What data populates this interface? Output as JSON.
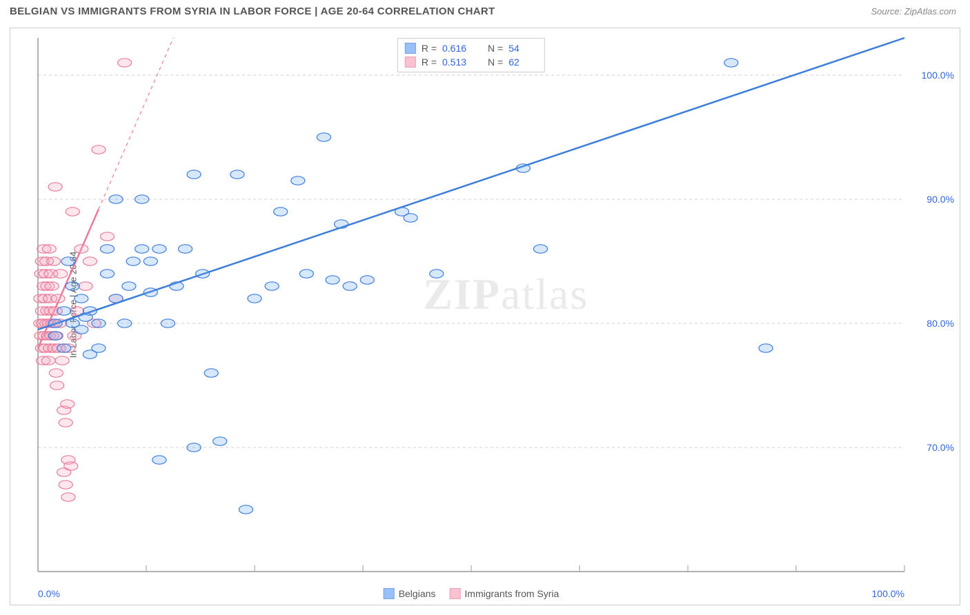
{
  "title": "BELGIAN VS IMMIGRANTS FROM SYRIA IN LABOR FORCE | AGE 20-64 CORRELATION CHART",
  "source": "Source: ZipAtlas.com",
  "y_axis_label": "In Labor Force | Age 20-64",
  "watermark_bold": "ZIP",
  "watermark_light": "atlas",
  "chart": {
    "type": "scatter",
    "xlim": [
      0,
      100
    ],
    "ylim": [
      60,
      103
    ],
    "background_color": "#ffffff",
    "grid_color": "#cccccc",
    "grid_dash": "4,4",
    "axis_color": "#999999",
    "y_ticks": [
      70,
      80,
      90,
      100
    ],
    "y_tick_labels": [
      "70.0%",
      "80.0%",
      "90.0%",
      "100.0%"
    ],
    "x_ticks": [
      0,
      12.5,
      25,
      37.5,
      50,
      62.5,
      75,
      87.5,
      100
    ],
    "x_tick_labels_shown": {
      "0": "0.0%",
      "100": "100.0%"
    },
    "marker_radius": 8,
    "marker_stroke_width": 1.2,
    "marker_fill_opacity": 0.28,
    "trend_line_width": 2.5,
    "series": [
      {
        "name": "Belgians",
        "color_fill": "#6fa8f5",
        "color_stroke": "#3b7ddd",
        "legend_label": "Belgians",
        "R": "0.616",
        "N": "54",
        "trend": {
          "x1": 0,
          "y1": 79.5,
          "x2": 100,
          "y2": 103,
          "dashed_from_x": 100
        },
        "points": [
          [
            2,
            80
          ],
          [
            2,
            79
          ],
          [
            3,
            81
          ],
          [
            3,
            78
          ],
          [
            3.5,
            85
          ],
          [
            4,
            80
          ],
          [
            4,
            83
          ],
          [
            5,
            79.5
          ],
          [
            5,
            82
          ],
          [
            5.5,
            80.5
          ],
          [
            6,
            77.5
          ],
          [
            6,
            81
          ],
          [
            7,
            80
          ],
          [
            7,
            78
          ],
          [
            8,
            86
          ],
          [
            8,
            84
          ],
          [
            9,
            82
          ],
          [
            9,
            90
          ],
          [
            10,
            80
          ],
          [
            10.5,
            83
          ],
          [
            11,
            85
          ],
          [
            12,
            90
          ],
          [
            12,
            86
          ],
          [
            13,
            82.5
          ],
          [
            13,
            85
          ],
          [
            14,
            69
          ],
          [
            14,
            86
          ],
          [
            15,
            80
          ],
          [
            16,
            83
          ],
          [
            17,
            86
          ],
          [
            18,
            92
          ],
          [
            18,
            70
          ],
          [
            19,
            84
          ],
          [
            20,
            76
          ],
          [
            21,
            70.5
          ],
          [
            23,
            92
          ],
          [
            25,
            82
          ],
          [
            24,
            65
          ],
          [
            27,
            83
          ],
          [
            28,
            89
          ],
          [
            30,
            91.5
          ],
          [
            31,
            84
          ],
          [
            33,
            95
          ],
          [
            34,
            83.5
          ],
          [
            35,
            88
          ],
          [
            36,
            83
          ],
          [
            38,
            83.5
          ],
          [
            42,
            89
          ],
          [
            43,
            88.5
          ],
          [
            46,
            84
          ],
          [
            56,
            92.5
          ],
          [
            58,
            86
          ],
          [
            80,
            101
          ],
          [
            84,
            78
          ]
        ]
      },
      {
        "name": "Immigrants from Syria",
        "color_fill": "#f8a8bd",
        "color_stroke": "#e87b9b",
        "legend_label": "Immigrants from Syria",
        "R": "0.513",
        "N": "62",
        "trend": {
          "x1": 0,
          "y1": 78,
          "x2": 10,
          "y2": 94,
          "dashed_from_x": 7
        },
        "points": [
          [
            0.3,
            80
          ],
          [
            0.3,
            82
          ],
          [
            0.4,
            79
          ],
          [
            0.4,
            84
          ],
          [
            0.5,
            78
          ],
          [
            0.5,
            81
          ],
          [
            0.5,
            85
          ],
          [
            0.6,
            77
          ],
          [
            0.6,
            80
          ],
          [
            0.7,
            83
          ],
          [
            0.7,
            86
          ],
          [
            0.8,
            79
          ],
          [
            0.8,
            82
          ],
          [
            0.9,
            84
          ],
          [
            0.9,
            78
          ],
          [
            1.0,
            80
          ],
          [
            1.0,
            85
          ],
          [
            1.1,
            81
          ],
          [
            1.1,
            83
          ],
          [
            1.2,
            79
          ],
          [
            1.2,
            77
          ],
          [
            1.3,
            86
          ],
          [
            1.3,
            80
          ],
          [
            1.4,
            82
          ],
          [
            1.4,
            78
          ],
          [
            1.5,
            84
          ],
          [
            1.5,
            81
          ],
          [
            1.6,
            79
          ],
          [
            1.6,
            83
          ],
          [
            1.7,
            80
          ],
          [
            1.8,
            85
          ],
          [
            1.9,
            78
          ],
          [
            2.0,
            81
          ],
          [
            2.0,
            91
          ],
          [
            2.1,
            76
          ],
          [
            2.1,
            79
          ],
          [
            2.2,
            75
          ],
          [
            2.3,
            82
          ],
          [
            2.4,
            78
          ],
          [
            2.5,
            80
          ],
          [
            2.6,
            84
          ],
          [
            2.8,
            77
          ],
          [
            3.0,
            73
          ],
          [
            3.0,
            68
          ],
          [
            3.2,
            67
          ],
          [
            3.2,
            72
          ],
          [
            3.4,
            73.5
          ],
          [
            3.5,
            69
          ],
          [
            3.5,
            66
          ],
          [
            3.8,
            68.5
          ],
          [
            4.0,
            89
          ],
          [
            4.2,
            79
          ],
          [
            5.0,
            86
          ],
          [
            5.5,
            83
          ],
          [
            6.0,
            85
          ],
          [
            6.5,
            80
          ],
          [
            7.0,
            94
          ],
          [
            8.0,
            87
          ],
          [
            9,
            82
          ],
          [
            10,
            101
          ],
          [
            3.5,
            78
          ],
          [
            4.5,
            81
          ]
        ]
      }
    ]
  },
  "corr_legend_labels": {
    "R": "R =",
    "N": "N ="
  }
}
